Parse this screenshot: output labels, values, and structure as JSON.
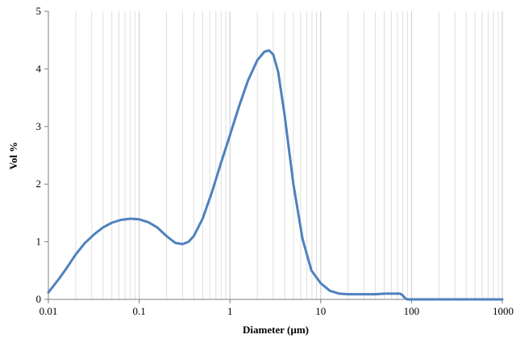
{
  "chart_data": {
    "type": "line",
    "title": "",
    "xlabel": "Diameter (µm)",
    "ylabel": "Vol %",
    "x_scale": "log",
    "xlim": [
      0.01,
      1000
    ],
    "ylim": [
      0,
      5
    ],
    "x_ticks": [
      0.01,
      0.1,
      1,
      10,
      100,
      1000
    ],
    "x_tick_labels": [
      "0.01",
      "0.1",
      "1",
      "10",
      "100",
      "1000"
    ],
    "y_ticks": [
      0,
      1,
      2,
      3,
      4,
      5
    ],
    "y_tick_labels": [
      "0",
      "1",
      "2",
      "3",
      "4",
      "5"
    ],
    "grid": {
      "vertical_major": true,
      "vertical_minor": true,
      "horizontal": false
    },
    "series": [
      {
        "color": "#4f81bd",
        "points": [
          [
            0.01,
            0.12
          ],
          [
            0.013,
            0.35
          ],
          [
            0.016,
            0.55
          ],
          [
            0.02,
            0.78
          ],
          [
            0.025,
            0.97
          ],
          [
            0.032,
            1.13
          ],
          [
            0.04,
            1.25
          ],
          [
            0.05,
            1.33
          ],
          [
            0.063,
            1.38
          ],
          [
            0.08,
            1.4
          ],
          [
            0.1,
            1.39
          ],
          [
            0.126,
            1.34
          ],
          [
            0.158,
            1.25
          ],
          [
            0.2,
            1.1
          ],
          [
            0.25,
            0.98
          ],
          [
            0.3,
            0.96
          ],
          [
            0.35,
            1.0
          ],
          [
            0.4,
            1.1
          ],
          [
            0.5,
            1.4
          ],
          [
            0.63,
            1.85
          ],
          [
            0.79,
            2.35
          ],
          [
            1.0,
            2.85
          ],
          [
            1.26,
            3.35
          ],
          [
            1.58,
            3.8
          ],
          [
            2.0,
            4.15
          ],
          [
            2.4,
            4.3
          ],
          [
            2.7,
            4.32
          ],
          [
            3.0,
            4.25
          ],
          [
            3.4,
            3.95
          ],
          [
            4.0,
            3.2
          ],
          [
            5.0,
            2.0
          ],
          [
            6.3,
            1.05
          ],
          [
            7.9,
            0.5
          ],
          [
            10,
            0.28
          ],
          [
            12.6,
            0.15
          ],
          [
            16,
            0.1
          ],
          [
            20,
            0.09
          ],
          [
            30,
            0.09
          ],
          [
            40,
            0.09
          ],
          [
            50,
            0.1
          ],
          [
            63,
            0.1
          ],
          [
            75,
            0.1
          ],
          [
            80,
            0.07
          ],
          [
            85,
            0.02
          ],
          [
            90,
            0.0
          ],
          [
            100,
            0.0
          ],
          [
            200,
            0.0
          ],
          [
            500,
            0.0
          ],
          [
            1000,
            0.0
          ]
        ]
      }
    ]
  }
}
